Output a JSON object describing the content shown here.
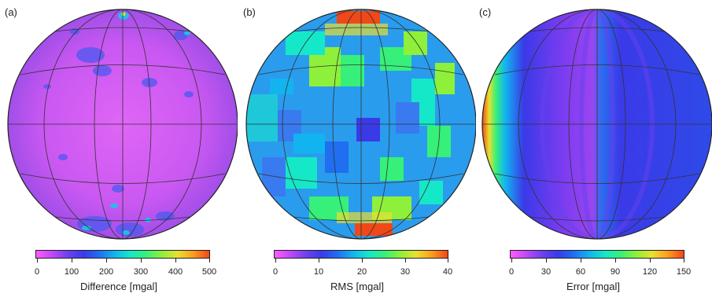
{
  "colorscale": [
    "#ff5cff",
    "#c048f8",
    "#7040f0",
    "#3a3ae8",
    "#1f6ff0",
    "#12b4f0",
    "#15e8c8",
    "#36f07a",
    "#8ef03a",
    "#e8e030",
    "#ff9a20",
    "#f04818"
  ],
  "panels": [
    {
      "label": "(a)",
      "title": "Difference [mgal]",
      "ticks": [
        "0",
        "100",
        "200",
        "300",
        "400",
        "500"
      ],
      "base_color": "#d85cf2"
    },
    {
      "label": "(b)",
      "title": "RMS [mgal]",
      "ticks": [
        "0",
        "10",
        "20",
        "30",
        "40"
      ],
      "base_color": "#2aa8ee"
    },
    {
      "label": "(c)",
      "title": "Error [mgal]",
      "ticks": [
        "0",
        "30",
        "60",
        "90",
        "120",
        "150"
      ],
      "base_color": "#7a3cf0"
    }
  ]
}
